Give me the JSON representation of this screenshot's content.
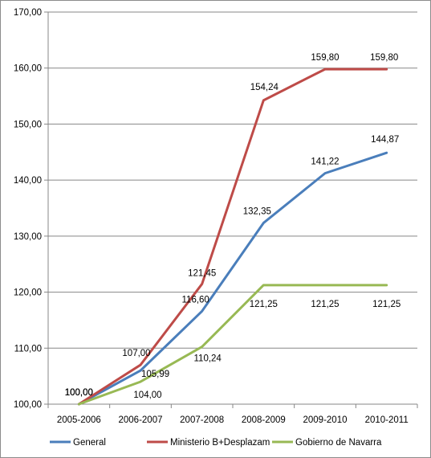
{
  "chart_data": {
    "type": "line",
    "title": "",
    "xlabel": "",
    "ylabel": "",
    "categories": [
      "2005-2006",
      "2006-2007",
      "2007-2008",
      "2008-2009",
      "2009-2010",
      "2010-2011"
    ],
    "ylim": [
      100,
      170
    ],
    "yticks": [
      "100,00",
      "110,00",
      "120,00",
      "130,00",
      "140,00",
      "150,00",
      "160,00",
      "170,00"
    ],
    "grid": true,
    "legend_position": "bottom",
    "series": [
      {
        "name": "General",
        "color": "#4a7ebb",
        "values": [
          100.0,
          105.99,
          116.6,
          132.35,
          141.22,
          144.87
        ],
        "labels": [
          "100,00",
          "105,99",
          "116,60",
          "132,35",
          "141,22",
          "144,87"
        ]
      },
      {
        "name": "Ministerio B+Desplazam",
        "color": "#be4b48",
        "values": [
          100.0,
          107.0,
          121.45,
          154.24,
          159.8,
          159.8
        ],
        "labels": [
          "100,00",
          "107,00",
          "121,45",
          "154,24",
          "159,80",
          "159,80"
        ]
      },
      {
        "name": "Gobierno de Navarra",
        "color": "#98b954",
        "values": [
          100.0,
          104.0,
          110.24,
          121.25,
          121.25,
          121.25
        ],
        "labels": [
          "100,00",
          "104,00",
          "110,24",
          "121,25",
          "121,25",
          "121,25"
        ]
      }
    ]
  }
}
